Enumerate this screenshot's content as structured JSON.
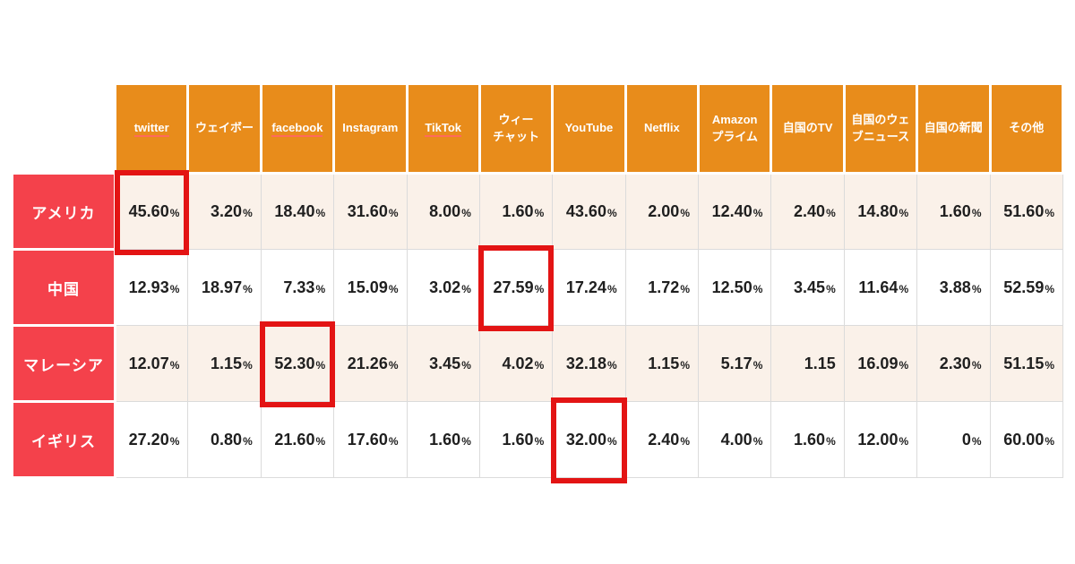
{
  "colors": {
    "page_bg": "#ffffff",
    "header_bg": "#E88C1B",
    "row_header_bg": "#F4414B",
    "row_bg": "#FFFFFF",
    "row_alt_bg": "#FAF1E9",
    "grid": "#DBDBDB",
    "header_text": "#FFFFFF",
    "cell_text": "#1F1F1F",
    "highlight_border": "#E31414",
    "underline": "#FF6A5A"
  },
  "chart_data": {
    "type": "table",
    "unit": "%",
    "legend_note": "red boxes mark the top platform highlighted per country",
    "columns": [
      {
        "id": "twitter",
        "label": "twitter",
        "underline": true
      },
      {
        "id": "weibo",
        "label": "ウェイボー",
        "underline": false
      },
      {
        "id": "facebook",
        "label": "facebook",
        "underline": true
      },
      {
        "id": "instagram",
        "label": "Instagram",
        "underline": false
      },
      {
        "id": "tiktok",
        "label": "TikTok",
        "underline": true
      },
      {
        "id": "wechat",
        "label": "ウィー\nチャット",
        "underline": false
      },
      {
        "id": "youtube",
        "label": "YouTube",
        "underline": false
      },
      {
        "id": "netflix",
        "label": "Netflix",
        "underline": false
      },
      {
        "id": "amazon-prime",
        "label": "Amazon\nプライム",
        "underline": false
      },
      {
        "id": "domestic-tv",
        "label": "自国のTV",
        "underline": false
      },
      {
        "id": "domestic-web-news",
        "label": "自国のウェ\nブニュース",
        "underline": false
      },
      {
        "id": "domestic-newspaper",
        "label": "自国の新聞",
        "underline": false
      },
      {
        "id": "others",
        "label": "その他",
        "underline": false
      }
    ],
    "rows": [
      {
        "id": "usa",
        "label": "アメリカ",
        "zebra": "cream",
        "highlight_column": 0,
        "values": [
          "45.60%",
          "3.20%",
          "18.40%",
          "31.60%",
          "8.00%",
          "1.60%",
          "43.60%",
          "2.00%",
          "12.40%",
          "2.40%",
          "14.80%",
          "1.60%",
          "51.60%"
        ]
      },
      {
        "id": "china",
        "label": "中国",
        "zebra": "white",
        "highlight_column": 5,
        "values": [
          "12.93%",
          "18.97%",
          "7.33%",
          "15.09%",
          "3.02%",
          "27.59%",
          "17.24%",
          "1.72%",
          "12.50%",
          "3.45%",
          "11.64%",
          "3.88%",
          "52.59%"
        ]
      },
      {
        "id": "malaysia",
        "label": "マレーシア",
        "zebra": "cream",
        "highlight_column": 2,
        "values": [
          "12.07%",
          "1.15%",
          "52.30%",
          "21.26%",
          "3.45%",
          "4.02%",
          "32.18%",
          "1.15%",
          "5.17%",
          "1.15",
          "16.09%",
          "2.30%",
          "51.15%"
        ]
      },
      {
        "id": "uk",
        "label": "イギリス",
        "zebra": "white",
        "highlight_column": 6,
        "values": [
          "27.20%",
          "0.80%",
          "21.60%",
          "17.60%",
          "1.60%",
          "1.60%",
          "32.00%",
          "2.40%",
          "4.00%",
          "1.60%",
          "12.00%",
          "0%",
          "60.00%"
        ]
      }
    ]
  }
}
